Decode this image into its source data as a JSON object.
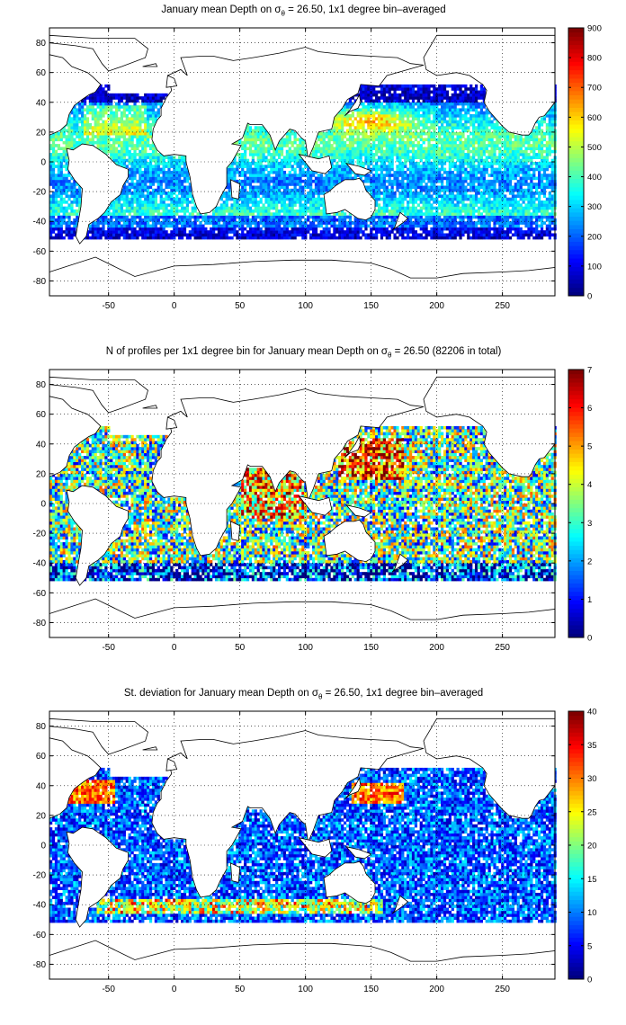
{
  "chart_data": [
    {
      "type": "heatmap",
      "title_pre": "January mean Depth on σ",
      "title_sub": "θ",
      "title_post": " = 26.50, 1x1 degree bin–averaged",
      "xticks": [
        "-50",
        "0",
        "50",
        "100",
        "150",
        "200",
        "250"
      ],
      "xtick_values": [
        -50,
        0,
        50,
        100,
        150,
        200,
        250
      ],
      "yticks": [
        "80",
        "60",
        "40",
        "20",
        "0",
        "-20",
        "-40",
        "-60",
        "-80"
      ],
      "ytick_values": [
        80,
        60,
        40,
        20,
        0,
        -20,
        -40,
        -60,
        -80
      ],
      "xlim": [
        -95,
        290
      ],
      "ylim": [
        -90,
        90
      ],
      "colorbar_ticks": [
        "0",
        "100",
        "200",
        "300",
        "400",
        "500",
        "600",
        "700",
        "800",
        "900"
      ],
      "colorbar_values": [
        0,
        100,
        200,
        300,
        400,
        500,
        600,
        700,
        800,
        900
      ],
      "clim": [
        0,
        900
      ],
      "colormap": "jet",
      "grid": "dotted"
    },
    {
      "type": "heatmap",
      "title_pre": "N of profiles per 1x1 degree bin for January mean Depth on σ",
      "title_sub": "θ",
      "title_post": " = 26.50 (82206 in total)",
      "xticks": [
        "-50",
        "0",
        "50",
        "100",
        "150",
        "200",
        "250"
      ],
      "xtick_values": [
        -50,
        0,
        50,
        100,
        150,
        200,
        250
      ],
      "yticks": [
        "80",
        "60",
        "40",
        "20",
        "0",
        "-20",
        "-40",
        "-60",
        "-80"
      ],
      "ytick_values": [
        80,
        60,
        40,
        20,
        0,
        -20,
        -40,
        -60,
        -80
      ],
      "xlim": [
        -95,
        290
      ],
      "ylim": [
        -90,
        90
      ],
      "colorbar_ticks": [
        "0",
        "1",
        "2",
        "3",
        "4",
        "5",
        "6",
        "7"
      ],
      "colorbar_values": [
        0,
        1,
        2,
        3,
        4,
        5,
        6,
        7
      ],
      "clim": [
        0,
        7
      ],
      "colormap": "jet",
      "grid": "dotted"
    },
    {
      "type": "heatmap",
      "title_pre": "St. deviation for January mean Depth on σ",
      "title_sub": "θ",
      "title_post": " = 26.50, 1x1 degree bin–averaged",
      "xticks": [
        "-50",
        "0",
        "50",
        "100",
        "150",
        "200",
        "250"
      ],
      "xtick_values": [
        -50,
        0,
        50,
        100,
        150,
        200,
        250
      ],
      "yticks": [
        "80",
        "60",
        "40",
        "20",
        "0",
        "-20",
        "-40",
        "-60",
        "-80"
      ],
      "ytick_values": [
        80,
        60,
        40,
        20,
        0,
        -20,
        -40,
        -60,
        -80
      ],
      "xlim": [
        -95,
        290
      ],
      "ylim": [
        -90,
        90
      ],
      "colorbar_ticks": [
        "0",
        "5",
        "10",
        "15",
        "20",
        "25",
        "30",
        "35",
        "40"
      ],
      "colorbar_values": [
        0,
        5,
        10,
        15,
        20,
        25,
        30,
        35,
        40
      ],
      "clim": [
        0,
        40
      ],
      "colormap": "jet",
      "grid": "dotted"
    }
  ]
}
